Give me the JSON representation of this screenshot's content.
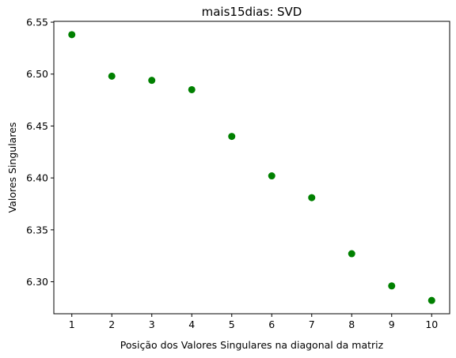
{
  "chart_data": {
    "type": "scatter",
    "title": "mais15dias: SVD",
    "xlabel": "Posição dos Valores Singulares na diagonal da matriz",
    "ylabel": "Valores Singulares",
    "x": [
      1,
      2,
      3,
      4,
      5,
      6,
      7,
      8,
      9,
      10
    ],
    "y": [
      6.538,
      6.498,
      6.494,
      6.485,
      6.44,
      6.402,
      6.381,
      6.327,
      6.296,
      6.282
    ],
    "xlim": [
      0.55,
      10.45
    ],
    "ylim": [
      6.2692,
      6.5508
    ],
    "xticks": [
      1,
      2,
      3,
      4,
      5,
      6,
      7,
      8,
      9,
      10
    ],
    "xtick_labels": [
      "1",
      "2",
      "3",
      "4",
      "5",
      "6",
      "7",
      "8",
      "9",
      "10"
    ],
    "yticks": [
      6.3,
      6.35,
      6.4,
      6.45,
      6.5,
      6.55
    ],
    "ytick_labels": [
      "6.30",
      "6.35",
      "6.40",
      "6.45",
      "6.50",
      "6.55"
    ],
    "marker_color": "#008000",
    "grid": false,
    "legend": "none"
  }
}
